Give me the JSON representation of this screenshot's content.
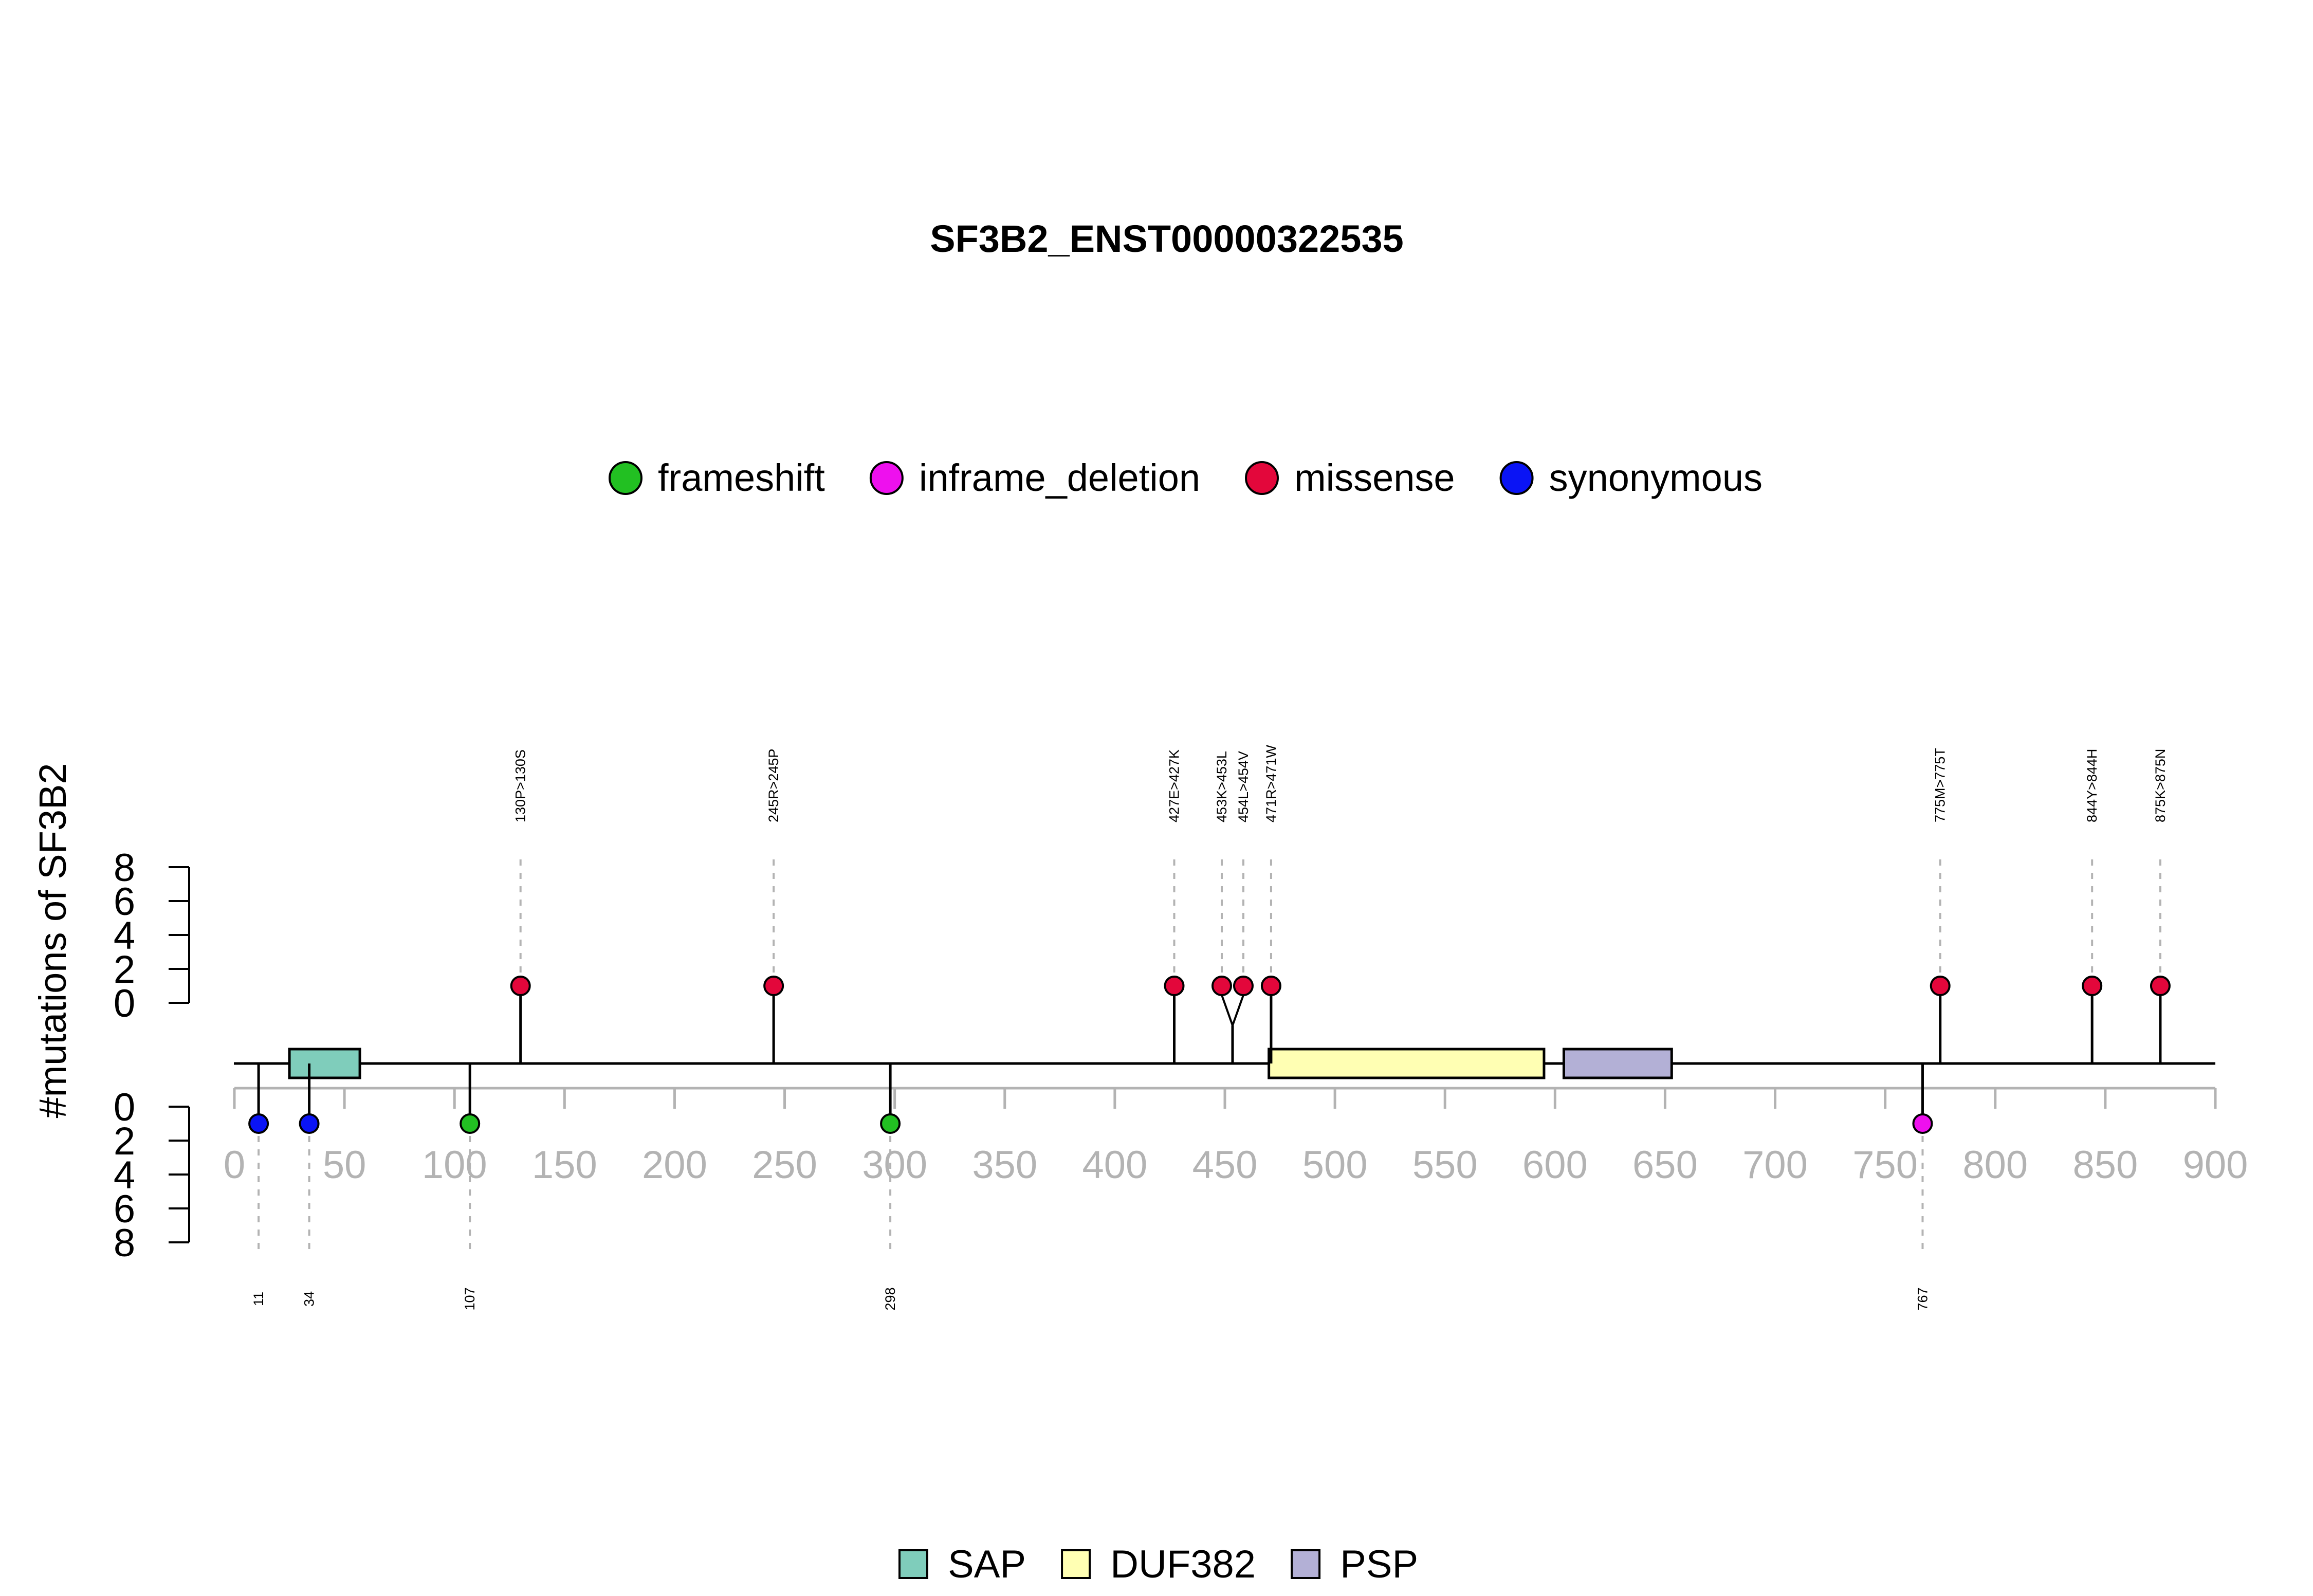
{
  "chart_data": {
    "type": "lollipop",
    "title": "SF3B2_ENST00000322535",
    "ylabel": "#mutations of SF3B2",
    "xlim": [
      0,
      900
    ],
    "x_ticks": [
      0,
      50,
      100,
      150,
      200,
      250,
      300,
      350,
      400,
      450,
      500,
      550,
      600,
      650,
      700,
      750,
      800,
      850,
      900
    ],
    "y_ticks_top": [
      0,
      2,
      4,
      6,
      8
    ],
    "y_ticks_bottom": [
      0,
      2,
      4,
      6,
      8
    ],
    "ylim": [
      0,
      8
    ],
    "legend_mutation_types": [
      {
        "name": "frameshift",
        "color": "#22c022"
      },
      {
        "name": "inframe_deletion",
        "color": "#ee10ee"
      },
      {
        "name": "missense",
        "color": "#e3073b"
      },
      {
        "name": "synonymous",
        "color": "#0a14f5"
      }
    ],
    "legend_domains": [
      {
        "name": "SAP",
        "color": "#7fcdbb"
      },
      {
        "name": "DUF382",
        "color": "#ffffb3"
      },
      {
        "name": "PSP",
        "color": "#b3b0d6"
      }
    ],
    "domains": [
      {
        "name": "SAP",
        "start": 25,
        "end": 57,
        "color": "#7fcdbb"
      },
      {
        "name": "DUF382",
        "start": 470,
        "end": 595,
        "color": "#ffffb3"
      },
      {
        "name": "PSP",
        "start": 604,
        "end": 653,
        "color": "#b3b0d6"
      }
    ],
    "mutations_top": [
      {
        "position": 130,
        "label": "130P>130S",
        "type": "missense",
        "count": 1
      },
      {
        "position": 245,
        "label": "245R>245P",
        "type": "missense",
        "count": 1
      },
      {
        "position": 427,
        "label": "427E>427K",
        "type": "missense",
        "count": 1
      },
      {
        "position": 453,
        "label": "453K>453L",
        "type": "missense",
        "count": 1
      },
      {
        "position": 454,
        "label": "454L>454V",
        "type": "missense",
        "count": 1
      },
      {
        "position": 471,
        "label": "471R>471W",
        "type": "missense",
        "count": 1
      },
      {
        "position": 775,
        "label": "775M>775T",
        "type": "missense",
        "count": 1
      },
      {
        "position": 844,
        "label": "844Y>844H",
        "type": "missense",
        "count": 1
      },
      {
        "position": 875,
        "label": "875K>875N",
        "type": "missense",
        "count": 1
      }
    ],
    "mutations_bottom": [
      {
        "position": 11,
        "label": "11",
        "type": "synonymous",
        "count": 1
      },
      {
        "position": 34,
        "label": "34",
        "type": "synonymous",
        "count": 1
      },
      {
        "position": 107,
        "label": "107",
        "type": "frameshift",
        "count": 1
      },
      {
        "position": 298,
        "label": "298",
        "type": "frameshift",
        "count": 1
      },
      {
        "position": 767,
        "label": "767",
        "type": "inframe_deletion",
        "count": 1
      }
    ]
  }
}
